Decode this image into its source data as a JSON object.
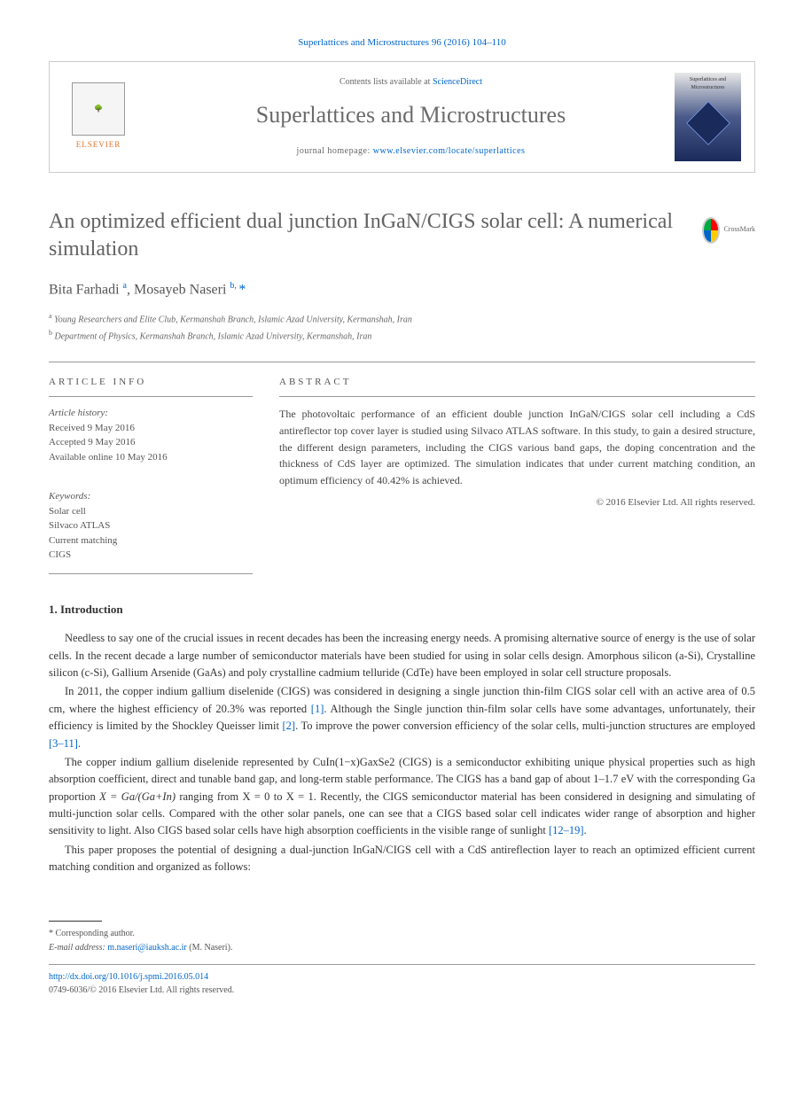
{
  "citation": "Superlattices and Microstructures 96 (2016) 104–110",
  "contents_text": "Contents lists available at ",
  "contents_link": "ScienceDirect",
  "journal_name": "Superlattices and Microstructures",
  "homepage_label": "journal homepage: ",
  "homepage_url": "www.elsevier.com/locate/superlattices",
  "elsevier": "ELSEVIER",
  "cover_title": "Superlattices and Microstructures",
  "crossmark": "CrossMark",
  "title": "An optimized efficient dual junction InGaN/CIGS solar cell: A numerical simulation",
  "authors": {
    "a1_name": "Bita Farhadi",
    "a1_sup": "a",
    "a2_name": "Mosayeb Naseri",
    "a2_sup": "b, ",
    "a2_star": "*"
  },
  "affiliations": {
    "a": "Young Researchers and Elite Club, Kermanshah Branch, Islamic Azad University, Kermanshah, Iran",
    "b": "Department of Physics, Kermanshah Branch, Islamic Azad University, Kermanshah, Iran"
  },
  "article_info_header": "ARTICLE INFO",
  "abstract_header": "ABSTRACT",
  "history_label": "Article history:",
  "history": {
    "received": "Received 9 May 2016",
    "accepted": "Accepted 9 May 2016",
    "online": "Available online 10 May 2016"
  },
  "keywords_label": "Keywords:",
  "keywords": [
    "Solar cell",
    "Silvaco ATLAS",
    "Current matching",
    "CIGS"
  ],
  "abstract": "The photovoltaic performance of an efficient double junction InGaN/CIGS solar cell including a CdS antireflector top cover layer is studied using Silvaco ATLAS software. In this study, to gain a desired structure, the different design parameters, including the CIGS various band gaps, the doping concentration and the thickness of CdS layer are optimized. The simulation indicates that under current matching condition, an optimum efficiency of 40.42% is achieved.",
  "copyright": "© 2016 Elsevier Ltd. All rights reserved.",
  "intro_header": "1. Introduction",
  "paragraphs": {
    "p1": "Needless to say one of the crucial issues in recent decades has been the increasing energy needs. A promising alternative source of energy is the use of solar cells. In the recent decade a large number of semiconductor materials have been studied for using in solar cells design. Amorphous silicon (a-Si), Crystalline silicon (c-Si), Gallium Arsenide (GaAs) and poly crystalline cadmium telluride (CdTe) have been employed in solar cell structure proposals.",
    "p2a": "In 2011, the copper indium gallium diselenide (CIGS) was considered in designing a single junction thin-film CIGS solar cell with an active area of 0.5 cm, where the highest efficiency of 20.3% was reported ",
    "p2b": ". Although the Single junction thin-film solar cells have some advantages, unfortunately, their efficiency is limited by the Shockley Queisser limit ",
    "p2c": ". To improve the power conversion efficiency of the solar cells, multi-junction structures are employed ",
    "p2d": ".",
    "p3a": "The copper indium gallium diselenide represented by CuIn(1−x)GaxSe2 (CIGS) is a semiconductor exhibiting unique physical properties such as high absorption coefficient, direct and tunable band gap, and long-term stable performance. The CIGS has a band gap of about 1–1.7 eV with the corresponding Ga proportion ",
    "p3formula": "X = Ga/(Ga+In)",
    "p3b": " ranging from X = 0 to X = 1. Recently, the CIGS semiconductor material has been considered in designing and simulating of multi-junction solar cells. Compared with the other solar panels, one can see that a CIGS based solar cell indicates wider range of absorption and higher sensitivity to light. Also CIGS based solar cells have high absorption coefficients in the visible range of sunlight ",
    "p3c": ".",
    "p4": "This paper proposes the potential of designing a dual-junction InGaN/CIGS cell with a CdS antireflection layer to reach an optimized efficient current matching condition and organized as follows:"
  },
  "refs": {
    "r1": "[1]",
    "r2": "[2]",
    "r3": "[3–11]",
    "r4": "[12–19]"
  },
  "footnote": {
    "corresp": "* Corresponding author.",
    "email_label": "E-mail address: ",
    "email": "m.naseri@iauksh.ac.ir",
    "email_name": " (M. Naseri)."
  },
  "footer": {
    "doi": "http://dx.doi.org/10.1016/j.spmi.2016.05.014",
    "issn": "0749-6036/© 2016 Elsevier Ltd. All rights reserved."
  }
}
